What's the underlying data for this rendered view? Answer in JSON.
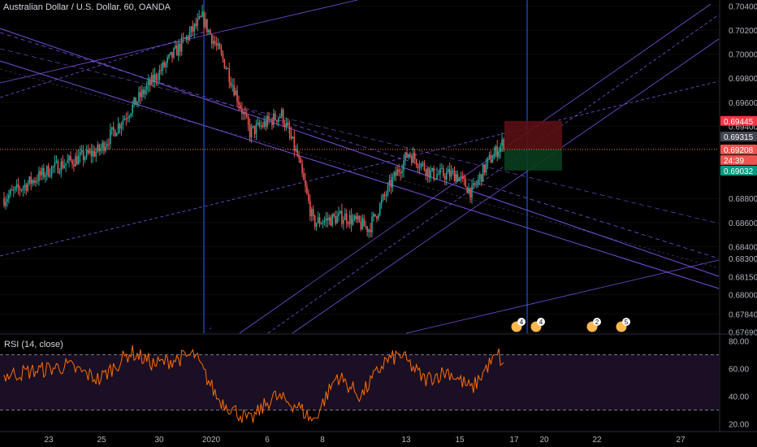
{
  "header": {
    "title": "Australian Dollar / U.S. Dollar, 60, OANDA"
  },
  "rsi": {
    "title": "RSI (14, close)"
  },
  "colors": {
    "up": "#26a69a",
    "down": "#ef5350",
    "line": "#8e5cff",
    "vline": "#2962ff",
    "rsi": "#ff6d00",
    "rsiBand": "#1a0f24",
    "red_tag": "#f23645",
    "green_tag": "#089981",
    "grey_tag": "#434651",
    "price_tag": "#ef5350"
  },
  "chart_data": [
    {
      "type": "candlestick",
      "title": "Australian Dollar / U.S. Dollar, 60, OANDA",
      "y_ticks": [
        "0.70400",
        "0.70200",
        "0.70000",
        "0.69800",
        "0.69600",
        "0.69400",
        "0.68800",
        "0.68600",
        "0.68400",
        "0.68300",
        "0.68150",
        "0.68000",
        "0.67840",
        "0.67690"
      ],
      "ylim": [
        0.6768,
        0.7045
      ],
      "x_ticks": [
        "23",
        "25",
        "30",
        "2020",
        "6",
        "8",
        "13",
        "15",
        "17",
        "20",
        "22",
        "27"
      ],
      "price_tags": [
        {
          "label": "0.69445",
          "kind": "red"
        },
        {
          "label": "0.69315",
          "kind": "grey"
        },
        {
          "label": "0.69208",
          "kind": "price"
        },
        {
          "label": "24:39",
          "kind": "price"
        },
        {
          "label": "0.69032",
          "kind": "green"
        }
      ],
      "anchor_prices": [
        {
          "bar": 0,
          "price": 0.688
        },
        {
          "bar": 30,
          "price": 0.6905
        },
        {
          "bar": 60,
          "price": 0.692
        },
        {
          "bar": 90,
          "price": 0.6972
        },
        {
          "bar": 110,
          "price": 0.7005
        },
        {
          "bar": 125,
          "price": 0.703
        },
        {
          "bar": 140,
          "price": 0.699
        },
        {
          "bar": 155,
          "price": 0.6935
        },
        {
          "bar": 175,
          "price": 0.695
        },
        {
          "bar": 185,
          "price": 0.6915
        },
        {
          "bar": 195,
          "price": 0.686
        },
        {
          "bar": 215,
          "price": 0.6865
        },
        {
          "bar": 230,
          "price": 0.6855
        },
        {
          "bar": 245,
          "price": 0.6895
        },
        {
          "bar": 255,
          "price": 0.6918
        },
        {
          "bar": 270,
          "price": 0.69
        },
        {
          "bar": 285,
          "price": 0.69
        },
        {
          "bar": 295,
          "price": 0.6885
        },
        {
          "bar": 305,
          "price": 0.691
        },
        {
          "bar": 315,
          "price": 0.6927
        }
      ],
      "position_box": {
        "entry": 0.69208,
        "stop": 0.69445,
        "target": 0.69032
      }
    },
    {
      "type": "line",
      "title": "RSI (14, close)",
      "y_ticks": [
        "80.00",
        "60.00",
        "40.00",
        "20.00"
      ],
      "ylim": [
        15,
        85
      ],
      "bands": [
        30,
        70
      ],
      "anchor_values": [
        {
          "bar": 0,
          "value": 55
        },
        {
          "bar": 40,
          "value": 62
        },
        {
          "bar": 60,
          "value": 52
        },
        {
          "bar": 80,
          "value": 72
        },
        {
          "bar": 95,
          "value": 63
        },
        {
          "bar": 120,
          "value": 70
        },
        {
          "bar": 135,
          "value": 38
        },
        {
          "bar": 155,
          "value": 22
        },
        {
          "bar": 170,
          "value": 40
        },
        {
          "bar": 185,
          "value": 33
        },
        {
          "bar": 195,
          "value": 22
        },
        {
          "bar": 210,
          "value": 55
        },
        {
          "bar": 225,
          "value": 40
        },
        {
          "bar": 240,
          "value": 65
        },
        {
          "bar": 250,
          "value": 70
        },
        {
          "bar": 265,
          "value": 52
        },
        {
          "bar": 280,
          "value": 58
        },
        {
          "bar": 295,
          "value": 45
        },
        {
          "bar": 305,
          "value": 62
        },
        {
          "bar": 312,
          "value": 70
        },
        {
          "bar": 315,
          "value": 60
        }
      ]
    }
  ],
  "events": {
    "markers": [
      "4",
      "4",
      "2",
      "5"
    ]
  }
}
